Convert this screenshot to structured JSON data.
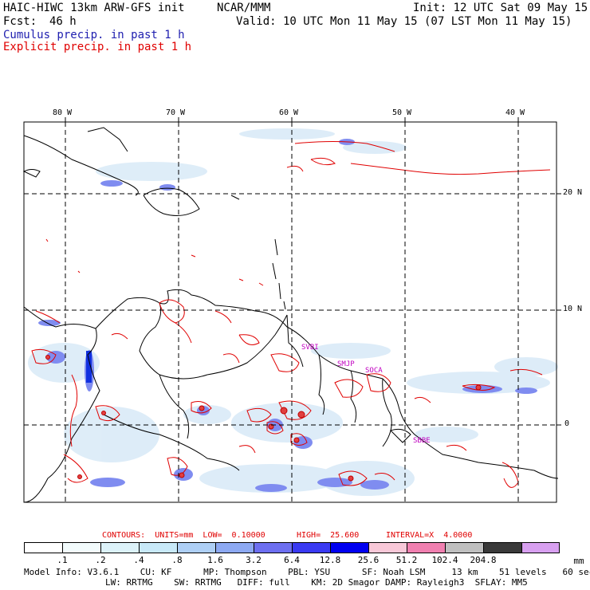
{
  "header": {
    "model_title": "HAIC-HIWC 13km ARW-GFS init",
    "center": "NCAR/MMM",
    "init": "Init: 12 UTC Sat 09 May 15",
    "fcst_label": "Fcst:",
    "fcst_value": "46 h",
    "valid": "Valid: 10 UTC Mon 11 May 15 (07 LST Mon 11 May 15)",
    "cumulus_label": "Cumulus precip. in past 1 h",
    "explicit_label": "Explicit precip. in past 1 h"
  },
  "colors": {
    "cumulus": "#3030c0",
    "explicit": "#e00000",
    "station": "#c000c0"
  },
  "map": {
    "lon_labels": [
      "80 W",
      "70 W",
      "60 W",
      "50 W",
      "40 W"
    ],
    "lat_labels": [
      "20 N",
      "10 N",
      "0"
    ],
    "stations": [
      "SVBI",
      "SMJP",
      "SOCA",
      "SBBE"
    ]
  },
  "contours": {
    "units_text": "CONTOURS:  UNITS=mm  LOW=  0.10000",
    "high_text": "HIGH=  25.600",
    "interval_text": "INTERVAL=X  4.0000"
  },
  "colorbar": {
    "unit": "mm",
    "ticks": [
      ".1",
      ".2",
      ".4",
      ".8",
      "1.6",
      "3.2",
      "6.4",
      "12.8",
      "25.6",
      "51.2",
      "102.4",
      "204.8"
    ],
    "colors": [
      "#ffffff",
      "#f2fbfc",
      "#dcf2f9",
      "#c8e9f8",
      "#aecff5",
      "#8da9f2",
      "#6d6ff0",
      "#3a3af2",
      "#0000f0",
      "#f8c8d8",
      "#f080b0",
      "#c0c0c0",
      "#3a3a3a",
      "#d8a0f0"
    ]
  },
  "model_info": {
    "line1": "Model Info: V3.6.1    CU: KF      MP: Thompson    PBL: YSU      SF: Noah LSM     13 km    51 levels   60 sec",
    "line2": "LW: RRTMG    SW: RRTMG   DIFF: full    KM: 2D Smagor DAMP: Rayleigh3  SFLAY: MM5"
  }
}
